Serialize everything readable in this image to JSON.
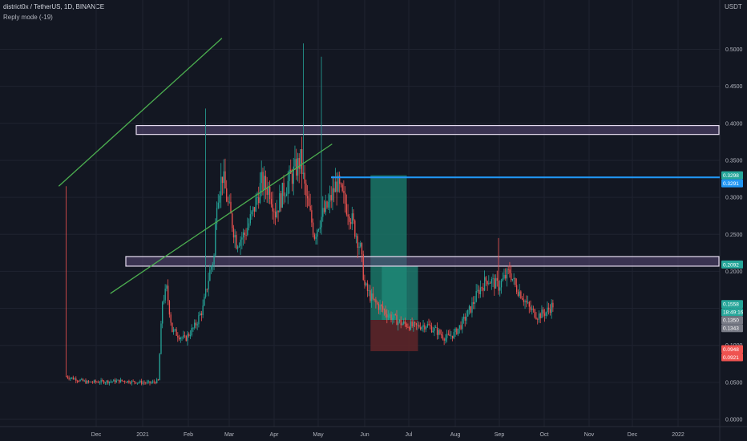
{
  "header": {
    "title": "district0x / TetherUS, 1D, BINANCE",
    "subtitle": "Reply mode (-19)",
    "currency": "USDT"
  },
  "colors": {
    "background": "#131722",
    "grid": "#1f2330",
    "up_candle": "#26a69a",
    "down_candle": "#ef5350",
    "trendline": "#4caf50",
    "target_line": "#2196f3",
    "zone_fill": "#5b4a78",
    "zone_border": "#e6dcf0",
    "profit_fill": "#1a7566",
    "loss_fill": "#5c2529"
  },
  "chart_data": {
    "type": "candlestick",
    "symbol": "DNT/USDT",
    "timeframe": "1D",
    "exchange": "BINANCE",
    "x_ticks": [
      "Dec",
      "2021",
      "Feb",
      "Mar",
      "Apr",
      "May",
      "Jun",
      "Jul",
      "Aug",
      "Sep",
      "Oct",
      "Nov",
      "Dec",
      "2022"
    ],
    "y_ticks": [
      "0.5000",
      "0.4500",
      "0.4000",
      "0.3500",
      "0.3000",
      "0.2500",
      "0.2000",
      "0.1500",
      "0.1000",
      "0.0500",
      "0.0000"
    ],
    "ylim": [
      -0.005,
      0.545
    ],
    "price_path": [
      [
        0,
        0.058
      ],
      [
        15,
        0.05
      ],
      [
        40,
        0.052
      ],
      [
        60,
        0.049
      ],
      [
        66,
        0.052
      ],
      [
        69,
        0.16
      ],
      [
        72,
        0.175
      ],
      [
        76,
        0.12
      ],
      [
        85,
        0.108
      ],
      [
        92,
        0.125
      ],
      [
        98,
        0.15
      ],
      [
        103,
        0.2
      ],
      [
        106,
        0.22
      ],
      [
        108,
        0.3
      ],
      [
        112,
        0.33
      ],
      [
        116,
        0.29
      ],
      [
        122,
        0.24
      ],
      [
        128,
        0.25
      ],
      [
        134,
        0.28
      ],
      [
        140,
        0.32
      ],
      [
        146,
        0.31
      ],
      [
        150,
        0.28
      ],
      [
        156,
        0.31
      ],
      [
        162,
        0.33
      ],
      [
        168,
        0.35
      ],
      [
        172,
        0.3
      ],
      [
        178,
        0.25
      ],
      [
        182,
        0.27
      ],
      [
        188,
        0.29
      ],
      [
        194,
        0.32
      ],
      [
        198,
        0.3
      ],
      [
        203,
        0.28
      ],
      [
        208,
        0.25
      ],
      [
        211,
        0.23
      ],
      [
        214,
        0.18
      ],
      [
        220,
        0.16
      ],
      [
        226,
        0.15
      ],
      [
        232,
        0.14
      ],
      [
        240,
        0.13
      ],
      [
        250,
        0.125
      ],
      [
        258,
        0.128
      ],
      [
        265,
        0.12
      ],
      [
        272,
        0.11
      ],
      [
        278,
        0.115
      ],
      [
        284,
        0.13
      ],
      [
        290,
        0.15
      ],
      [
        296,
        0.175
      ],
      [
        302,
        0.19
      ],
      [
        306,
        0.185
      ],
      [
        310,
        0.18
      ],
      [
        314,
        0.19
      ],
      [
        318,
        0.2
      ],
      [
        322,
        0.18
      ],
      [
        326,
        0.17
      ],
      [
        332,
        0.15
      ],
      [
        338,
        0.14
      ],
      [
        344,
        0.145
      ],
      [
        349,
        0.155
      ]
    ],
    "candle_count": 350,
    "trendlines": [
      {
        "from": [
          -5,
          0.315
        ],
        "to": [
          112,
          0.515
        ]
      },
      {
        "from": [
          32,
          0.17
        ],
        "to": [
          191,
          0.372
        ]
      }
    ],
    "zones": [
      {
        "low": 0.385,
        "high": 0.397
      },
      {
        "low": 0.207,
        "high": 0.22
      }
    ],
    "horizontal_line": {
      "value": 0.327,
      "from": 112
    },
    "position": {
      "entry": 0.1343,
      "target": 0.3298,
      "stop": 0.0921,
      "from": 218,
      "to": 248
    },
    "price_labels": [
      {
        "text": "0.3298",
        "value": 0.3298,
        "color": "#26a69a"
      },
      {
        "text": "0.3291",
        "value": 0.3291,
        "color": "#2196f3"
      },
      {
        "text": "0.2092",
        "value": 0.2092,
        "color": "#26a69a"
      },
      {
        "text": "0.1558",
        "value": 0.1558,
        "color": "#26a69a"
      },
      {
        "text": "18:49:16",
        "value": 0.1458,
        "color": "#26a69a"
      },
      {
        "text": "0.1350",
        "value": 0.135,
        "color": "#787b86"
      },
      {
        "text": "0.1343",
        "value": 0.1343,
        "color": "#787b86"
      },
      {
        "text": "0.0948",
        "value": 0.0948,
        "color": "#ef5350"
      },
      {
        "text": "0.0921",
        "value": 0.0921,
        "color": "#ef5350"
      }
    ]
  }
}
